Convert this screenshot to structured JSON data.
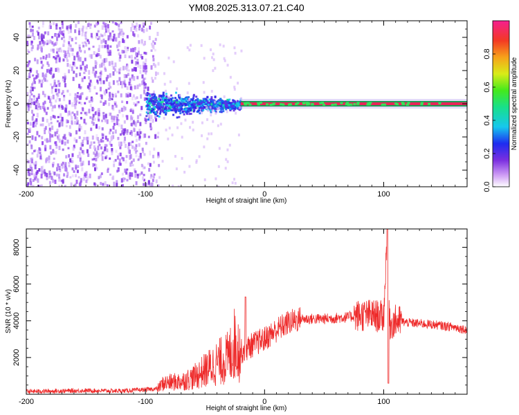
{
  "title": "YM08.2025.313.07.21.C40",
  "colors": {
    "snr_line": "#ee2a2a",
    "spec_low": "#7b2fe0",
    "spec_mid": "#18e08a",
    "spec_high": "#e8245a"
  },
  "chart_data": [
    {
      "type": "heatmap",
      "name": "spectrogram",
      "xlabel": "Height of straight line (km)",
      "ylabel": "Frequency (Hz)",
      "xlim": [
        -200,
        170
      ],
      "ylim": [
        -50,
        50
      ],
      "xticks": [
        -200,
        -100,
        0,
        100
      ],
      "yticks": [
        -40,
        -20,
        0,
        20,
        40
      ],
      "colorbar": {
        "label": "Normalized spectral amplitude",
        "range": [
          0,
          1
        ],
        "ticks": [
          "0.0",
          "0.2",
          "0.4",
          "0.6",
          "0.8"
        ]
      },
      "regions": [
        {
          "x": [
            -200,
            -100
          ],
          "freq_halfwidth": 50,
          "amplitude": 0.05,
          "description": "noise"
        },
        {
          "x": [
            -100,
            -20
          ],
          "freq_halfwidth": 10,
          "amplitude": 0.3
        },
        {
          "x": [
            -20,
            170
          ],
          "freq": 0,
          "amplitude": 1.0
        }
      ]
    },
    {
      "type": "line",
      "name": "snr",
      "xlabel": "Height of straight line (km)",
      "ylabel": "SNR (10 * v/v)",
      "xlim": [
        -200,
        170
      ],
      "ylim": [
        0,
        9000
      ],
      "xticks": [
        -200,
        -100,
        0,
        100
      ],
      "yticks": [
        2000,
        4000,
        6000,
        8000
      ],
      "series": [
        {
          "name": "SNR",
          "x": [
            -200,
            -150,
            -120,
            -100,
            -90,
            -85,
            -70,
            -60,
            -50,
            -40,
            -30,
            -25,
            -20,
            -10,
            0,
            10,
            20,
            30,
            40,
            50,
            60,
            70,
            80,
            90,
            100,
            103,
            105,
            110,
            120,
            140,
            160,
            170
          ],
          "values": [
            150,
            200,
            180,
            250,
            300,
            600,
            700,
            900,
            1300,
            1700,
            2000,
            2800,
            2300,
            2700,
            3000,
            3500,
            3900,
            4100,
            4100,
            4100,
            4150,
            4200,
            4300,
            4300,
            4200,
            9000,
            3800,
            4000,
            3900,
            3800,
            3650,
            3500
          ]
        }
      ]
    }
  ]
}
